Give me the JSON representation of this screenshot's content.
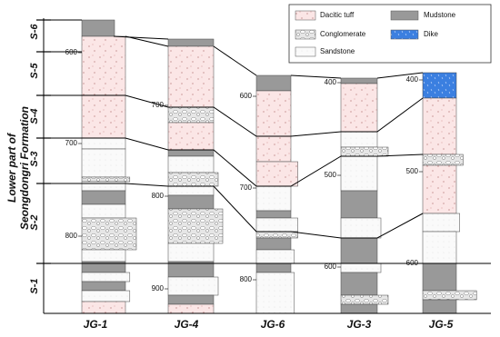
{
  "title": {
    "line1": "Lower part of",
    "line2": "Seongdongri Formation"
  },
  "units": [
    "S-6",
    "S-5",
    "S-4",
    "S-3",
    "S-2",
    "S-1"
  ],
  "legend": {
    "dacitic_tuff": "Dacitic tuff",
    "mudstone": "Mudstone",
    "conglomerate": "Conglomerate",
    "dike": "Dike",
    "sandstone": "Sandstone"
  },
  "columns": [
    {
      "name": "JG-1",
      "depths": [
        "600",
        "700",
        "800"
      ]
    },
    {
      "name": "JG-4",
      "depths": [
        "700",
        "800",
        "900"
      ]
    },
    {
      "name": "JG-6",
      "depths": [
        "600",
        "700",
        "800"
      ]
    },
    {
      "name": "JG-3",
      "depths": [
        "400",
        "500",
        "600"
      ]
    },
    {
      "name": "JG-5",
      "depths": [
        "400",
        "500",
        "600"
      ]
    }
  ]
}
